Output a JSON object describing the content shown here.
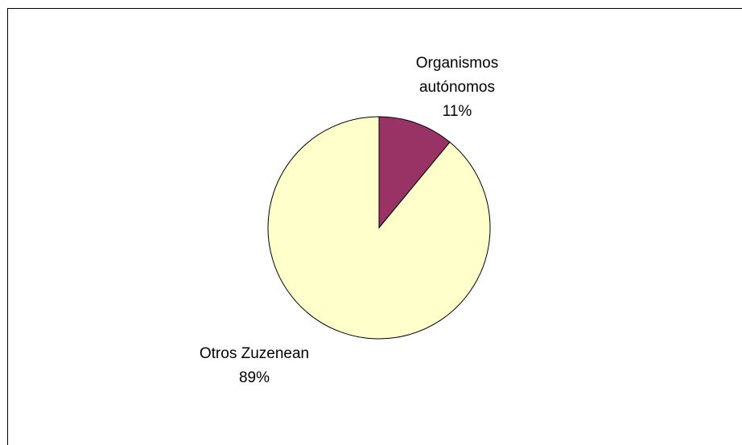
{
  "chart_data": {
    "type": "pie",
    "categories": [
      "Organismos autónomos",
      "Otros Zuzenean"
    ],
    "values": [
      11,
      89
    ],
    "value_labels": [
      "11%",
      "89%"
    ],
    "colors": [
      "#993366",
      "#FFFFCC"
    ]
  }
}
